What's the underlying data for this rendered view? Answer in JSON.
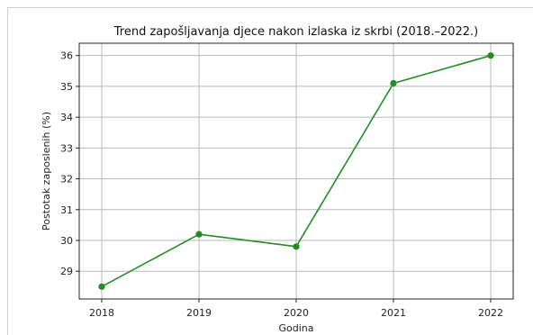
{
  "chart_data": {
    "type": "line",
    "title": "Trend zapošljavanja djece nakon izlaska iz skrbi (2018.–2022.)",
    "xlabel": "Godina",
    "ylabel": "Postotak zaposlenih (%)",
    "x": [
      "2018",
      "2019",
      "2020",
      "2021",
      "2022"
    ],
    "series": [
      {
        "values": [
          28.5,
          30.2,
          29.8,
          35.1,
          36.0
        ],
        "color": "#238b23",
        "marker": "circle"
      }
    ],
    "yticks": [
      29,
      30,
      31,
      32,
      33,
      34,
      35,
      36
    ],
    "ylim": [
      28.1,
      36.4
    ],
    "grid": true,
    "legend": "none"
  }
}
